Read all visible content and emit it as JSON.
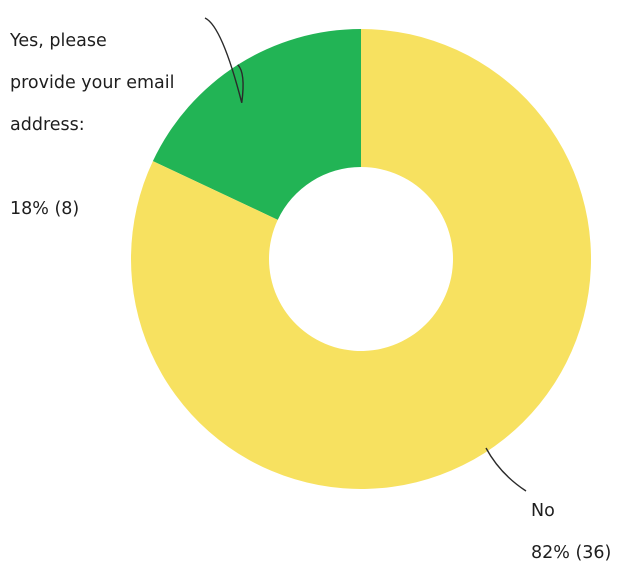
{
  "chart_data": {
    "type": "pie",
    "variant": "donut",
    "title": "",
    "slices": [
      {
        "label": "Yes, please provide your email address:",
        "label_lines": [
          "Yes, please",
          "provide your email",
          "address:"
        ],
        "percent": 18,
        "count": 8,
        "value_text": "18% (8)",
        "color": "#22b455"
      },
      {
        "label": "No",
        "label_lines": [
          "No"
        ],
        "percent": 82,
        "count": 36,
        "value_text": "82% (36)",
        "color": "#f7e160"
      }
    ],
    "start_angle_deg": 0,
    "direction": "counterclockwise",
    "hole_ratio": 0.4,
    "legend": "none",
    "labels_placement": "outside-with-leader-lines"
  }
}
